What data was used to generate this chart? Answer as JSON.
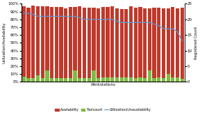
{
  "xlabel": "Workstations",
  "ylabel_left": "Utilization/Availability",
  "ylabel_right": "Registered Count",
  "ylim_left": [
    0,
    1.0
  ],
  "ylim_right": [
    0,
    25
  ],
  "yticks_left": [
    0,
    0.1,
    0.2,
    0.3,
    0.4,
    0.5,
    0.6,
    0.7,
    0.8,
    0.9,
    1.0
  ],
  "ytick_labels_left": [
    "0%",
    "10%",
    "20%",
    "30%",
    "40%",
    "50%",
    "60%",
    "70%",
    "80%",
    "90%",
    "100%"
  ],
  "yticks_right": [
    0,
    5,
    10,
    15,
    20,
    25
  ],
  "availability": [
    0.97,
    0.95,
    0.98,
    0.97,
    0.97,
    0.97,
    0.96,
    0.96,
    0.96,
    0.94,
    0.96,
    0.96,
    0.97,
    0.95,
    0.95,
    0.95,
    0.94,
    0.96,
    0.96,
    0.97,
    0.94,
    0.93,
    0.93,
    0.97,
    0.95,
    0.96,
    0.94,
    0.94,
    0.95,
    0.95,
    0.94,
    0.94,
    0.96,
    0.94,
    0.95
  ],
  "toolcount": [
    0.07,
    0.05,
    0.05,
    0.08,
    0.05,
    0.15,
    0.05,
    0.05,
    0.05,
    0.05,
    0.05,
    0.15,
    0.05,
    0.05,
    0.05,
    0.15,
    0.05,
    0.06,
    0.06,
    0.06,
    0.06,
    0.06,
    0.06,
    0.06,
    0.05,
    0.06,
    0.05,
    0.15,
    0.05,
    0.06,
    0.05,
    0.1,
    0.06,
    0.06,
    0.04
  ],
  "utilization_line": [
    22,
    22,
    21.5,
    21,
    21,
    21,
    21,
    21,
    21,
    21,
    21,
    21,
    20.5,
    20,
    20,
    20,
    20,
    20,
    20,
    20,
    19.5,
    19,
    19,
    19,
    19,
    19,
    19,
    19,
    18.5,
    18,
    17,
    17,
    17,
    16,
    13
  ],
  "bar_color_avail": "#c0392b",
  "bar_color_tool": "#7dbb42",
  "line_color": "#5b9bd5",
  "legend_labels": [
    "Availability",
    "Toolcount",
    "Utilization/Unavailability"
  ],
  "n_bars": 35,
  "figsize": [
    2.88,
    1.75
  ],
  "dpi": 100
}
